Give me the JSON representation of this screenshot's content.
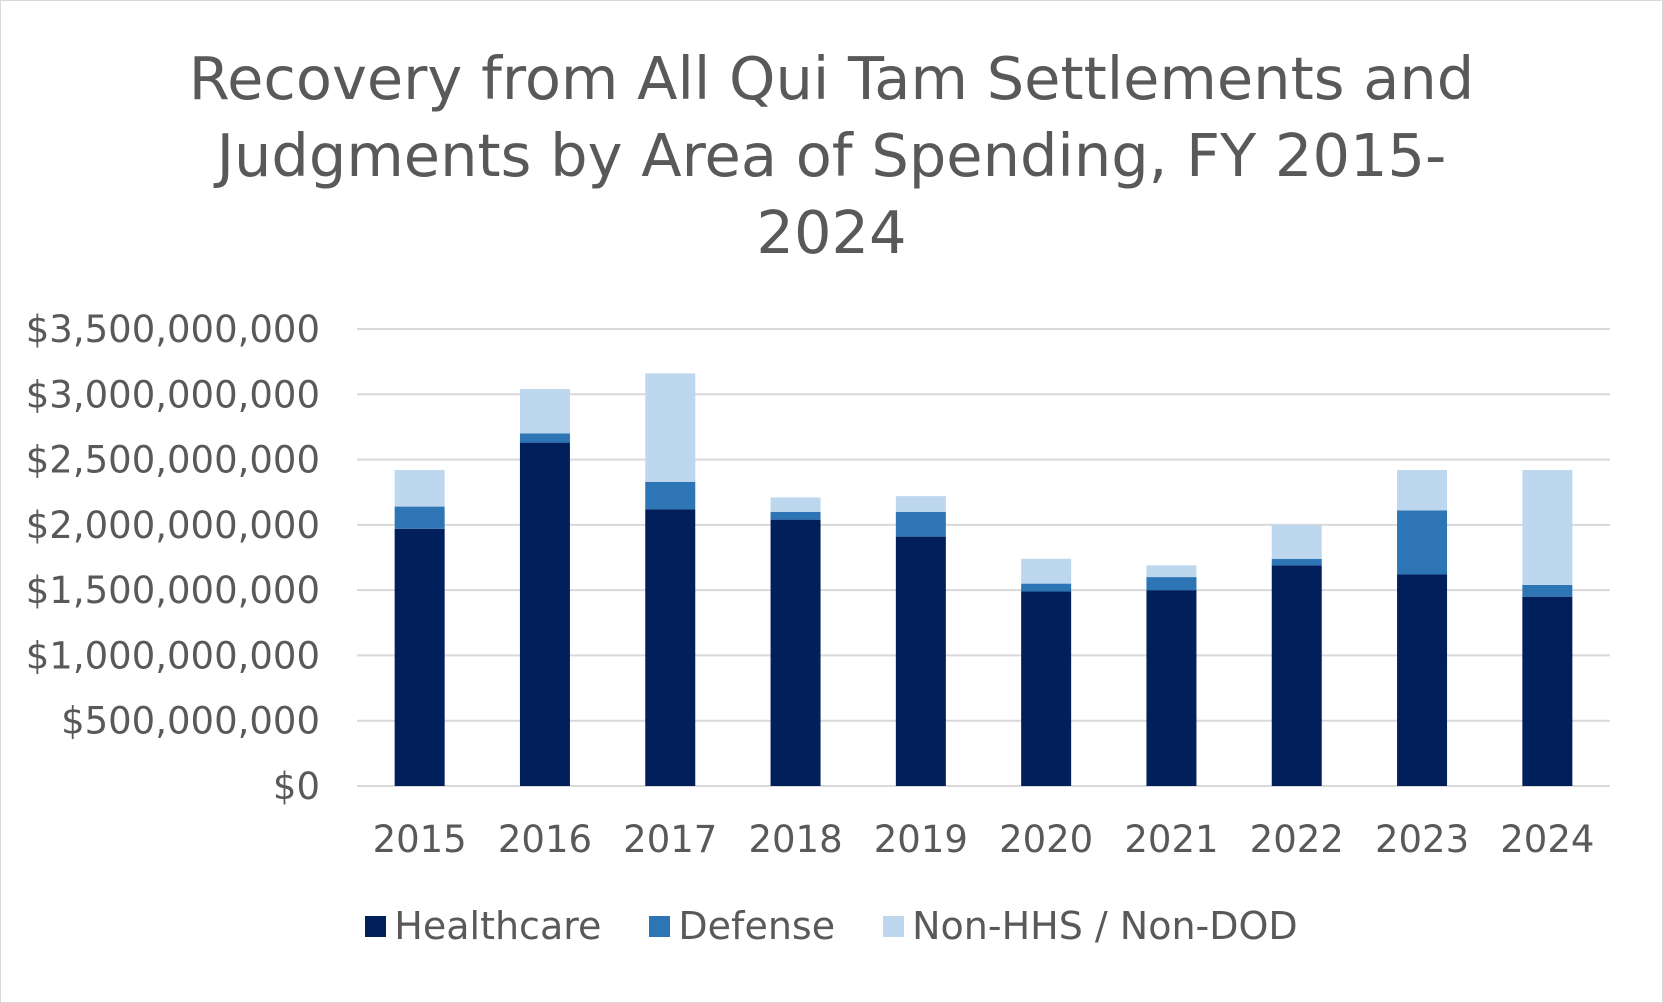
{
  "chart_data": {
    "type": "bar",
    "stacked": true,
    "title_lines": [
      "Recovery from All Qui Tam Settlements and",
      "Judgments by Area of Spending, FY 2015-",
      "2024"
    ],
    "categories": [
      "2015",
      "2016",
      "2017",
      "2018",
      "2019",
      "2020",
      "2021",
      "2022",
      "2023",
      "2024"
    ],
    "series": [
      {
        "name": "Healthcare",
        "color": "#001f5b",
        "values": [
          1970000000,
          2630000000,
          2120000000,
          2040000000,
          1910000000,
          1490000000,
          1500000000,
          1690000000,
          1620000000,
          1450000000
        ]
      },
      {
        "name": "Defense",
        "color": "#2e75b6",
        "values": [
          170000000,
          70000000,
          210000000,
          60000000,
          190000000,
          60000000,
          100000000,
          50000000,
          490000000,
          90000000
        ]
      },
      {
        "name": "Non-HHS / Non-DOD",
        "color": "#bdd7ee",
        "values": [
          280000000,
          340000000,
          830000000,
          110000000,
          120000000,
          190000000,
          90000000,
          260000000,
          310000000,
          880000000
        ]
      }
    ],
    "y_ticks": [
      "$0",
      "$500,000,000",
      "$1,000,000,000",
      "$1,500,000,000",
      "$2,000,000,000",
      "$2,500,000,000",
      "$3,000,000,000",
      "$3,500,000,000"
    ],
    "ylim": [
      0,
      3500000000
    ],
    "grid": true,
    "legend_position": "bottom"
  }
}
